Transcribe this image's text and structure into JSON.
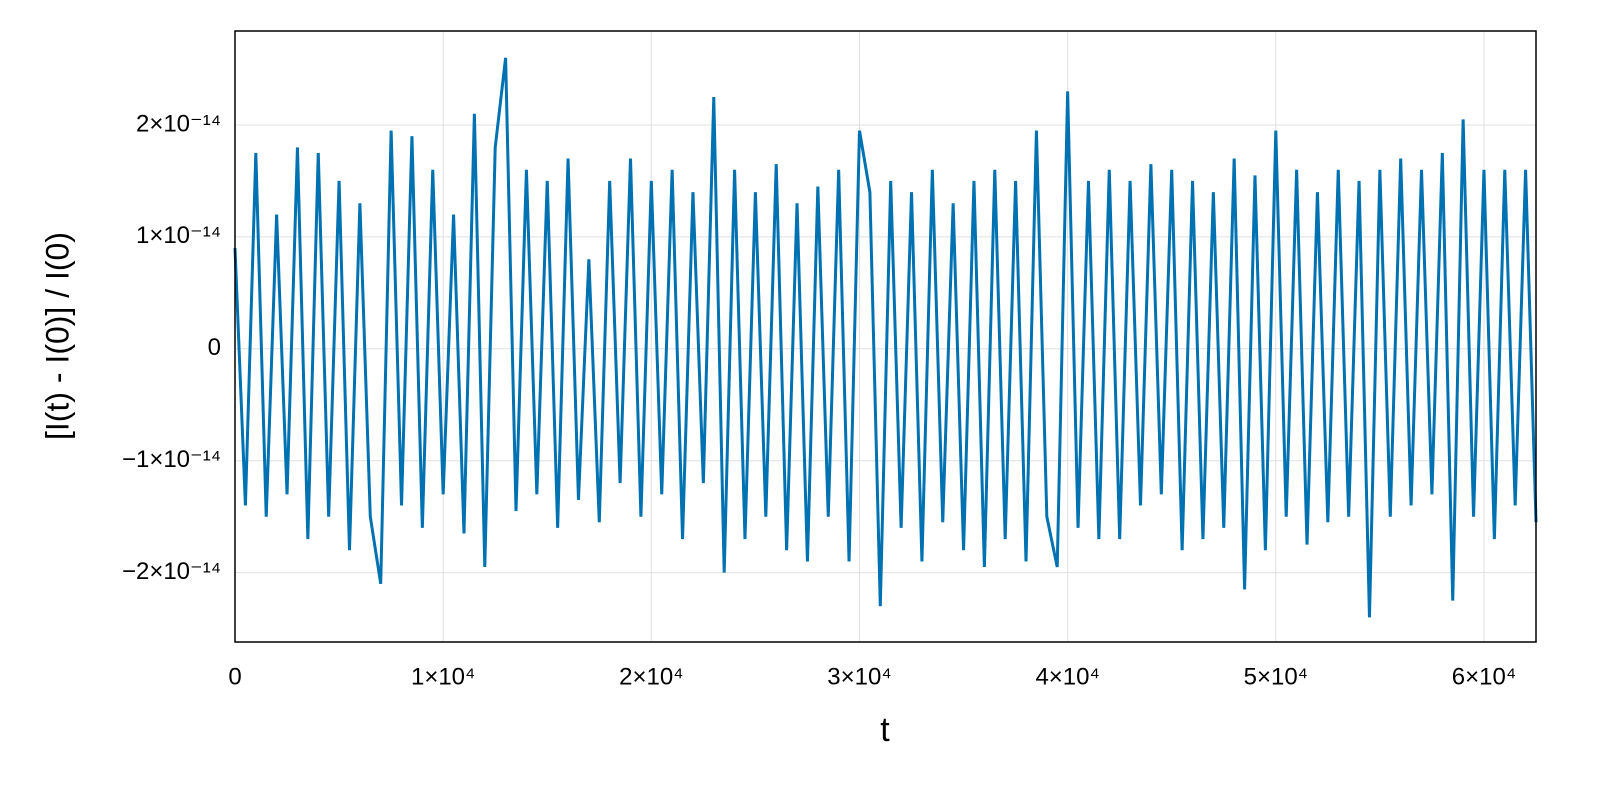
{
  "chart_data": {
    "type": "line",
    "xlabel": "t",
    "ylabel": "[I(t) - I(0)] / I(0)",
    "color": "#0072b2",
    "grid": true,
    "xlim": [
      0,
      62500
    ],
    "ylim": [
      -2.62e-14,
      2.84e-14
    ],
    "xticks": [
      0,
      {
        "value": 10000,
        "label": "1×10⁴"
      },
      {
        "value": 20000,
        "label": "2×10⁴"
      },
      {
        "value": 30000,
        "label": "3×10⁴"
      },
      {
        "value": 40000,
        "label": "4×10⁴"
      },
      {
        "value": 50000,
        "label": "5×10⁴"
      },
      {
        "value": 60000,
        "label": "6×10⁴"
      }
    ],
    "yticks": [
      {
        "value": -2e-14,
        "label": "−2×10⁻¹⁴"
      },
      {
        "value": -1e-14,
        "label": "−1×10⁻¹⁴"
      },
      0,
      {
        "value": 1e-14,
        "label": "1×10⁻¹⁴"
      },
      {
        "value": 2e-14,
        "label": "2×10⁻¹⁴"
      }
    ],
    "x": [
      0,
      500,
      1000,
      1500,
      2000,
      2500,
      3000,
      3500,
      4000,
      4500,
      5000,
      5500,
      6000,
      6500,
      7000,
      7500,
      8000,
      8500,
      9000,
      9500,
      10000,
      10500,
      11000,
      11500,
      12000,
      12500,
      13000,
      13500,
      14000,
      14500,
      15000,
      15500,
      16000,
      16500,
      17000,
      17500,
      18000,
      18500,
      19000,
      19500,
      20000,
      20500,
      21000,
      21500,
      22000,
      22500,
      23000,
      23500,
      24000,
      24500,
      25000,
      25500,
      26000,
      26500,
      27000,
      27500,
      28000,
      28500,
      29000,
      29500,
      30000,
      30500,
      31000,
      31500,
      32000,
      32500,
      33000,
      33500,
      34000,
      34500,
      35000,
      35500,
      36000,
      36500,
      37000,
      37500,
      38000,
      38500,
      39000,
      39500,
      40000,
      40500,
      41000,
      41500,
      42000,
      42500,
      43000,
      43500,
      44000,
      44500,
      45000,
      45500,
      46000,
      46500,
      47000,
      47500,
      48000,
      48500,
      49000,
      49500,
      50000,
      50500,
      51000,
      51500,
      52000,
      52500,
      53000,
      53500,
      54000,
      54500,
      55000,
      55500,
      56000,
      56500,
      57000,
      57500,
      58000,
      58500,
      59000,
      59500,
      60000,
      60500,
      61000,
      61500,
      62000,
      62500
    ],
    "values": [
      9e-15,
      -1.4e-14,
      1.75e-14,
      -1.5e-14,
      1.2e-14,
      -1.3e-14,
      1.8e-14,
      -1.7e-14,
      1.75e-14,
      -1.5e-14,
      1.5e-14,
      -1.8e-14,
      1.3e-14,
      -1.5e-14,
      -2.1e-14,
      1.95e-14,
      -1.4e-14,
      1.9e-14,
      -1.6e-14,
      1.6e-14,
      -1.3e-14,
      1.2e-14,
      -1.65e-14,
      2.1e-14,
      -1.95e-14,
      1.8e-14,
      2.6e-14,
      -1.45e-14,
      1.6e-14,
      -1.3e-14,
      1.5e-14,
      -1.6e-14,
      1.7e-14,
      -1.35e-14,
      8e-15,
      -1.55e-14,
      1.5e-14,
      -1.2e-14,
      1.7e-14,
      -1.5e-14,
      1.5e-14,
      -1.3e-14,
      1.6e-14,
      -1.7e-14,
      1.4e-14,
      -1.2e-14,
      2.25e-14,
      -2e-14,
      1.6e-14,
      -1.7e-14,
      1.4e-14,
      -1.5e-14,
      1.65e-14,
      -1.8e-14,
      1.3e-14,
      -1.9e-14,
      1.45e-14,
      -1.5e-14,
      1.6e-14,
      -1.9e-14,
      1.95e-14,
      1.4e-14,
      -2.3e-14,
      1.5e-14,
      -1.6e-14,
      1.4e-14,
      -1.9e-14,
      1.6e-14,
      -1.55e-14,
      1.3e-14,
      -1.8e-14,
      1.5e-14,
      -1.95e-14,
      1.6e-14,
      -1.7e-14,
      1.5e-14,
      -1.9e-14,
      1.95e-14,
      -1.5e-14,
      -1.95e-14,
      2.3e-14,
      -1.6e-14,
      1.5e-14,
      -1.7e-14,
      1.6e-14,
      -1.7e-14,
      1.5e-14,
      -1.4e-14,
      1.65e-14,
      -1.3e-14,
      1.6e-14,
      -1.8e-14,
      1.5e-14,
      -1.7e-14,
      1.4e-14,
      -1.6e-14,
      1.7e-14,
      -2.15e-14,
      1.55e-14,
      -1.8e-14,
      1.95e-14,
      -1.5e-14,
      1.6e-14,
      -1.75e-14,
      1.4e-14,
      -1.55e-14,
      1.6e-14,
      -1.5e-14,
      1.5e-14,
      -2.4e-14,
      1.6e-14,
      -1.5e-14,
      1.7e-14,
      -1.4e-14,
      1.6e-14,
      -1.3e-14,
      1.75e-14,
      -2.25e-14,
      2.05e-14,
      -1.5e-14,
      1.6e-14,
      -1.7e-14,
      1.6e-14,
      -1.4e-14,
      1.6e-14,
      -1.55e-14
    ]
  }
}
